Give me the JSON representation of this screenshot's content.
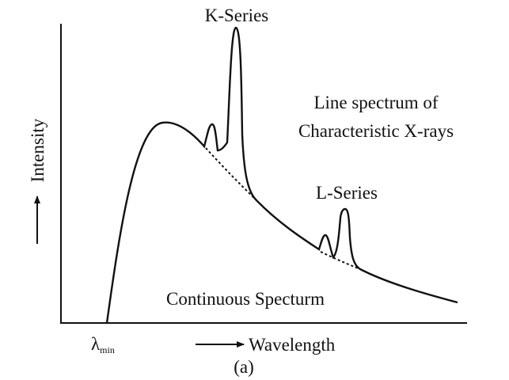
{
  "title": "K-Series",
  "annotation": {
    "line1": "Line spectrum of",
    "line2": "Characteristic X-rays"
  },
  "l_series": "L-Series",
  "continuous": "Continuous Specturm",
  "y_axis_label": "Intensity",
  "x_axis_label": "Wavelength",
  "lambda_min": {
    "symbol": "λ",
    "subscript": "min"
  },
  "caption": "(a)"
}
